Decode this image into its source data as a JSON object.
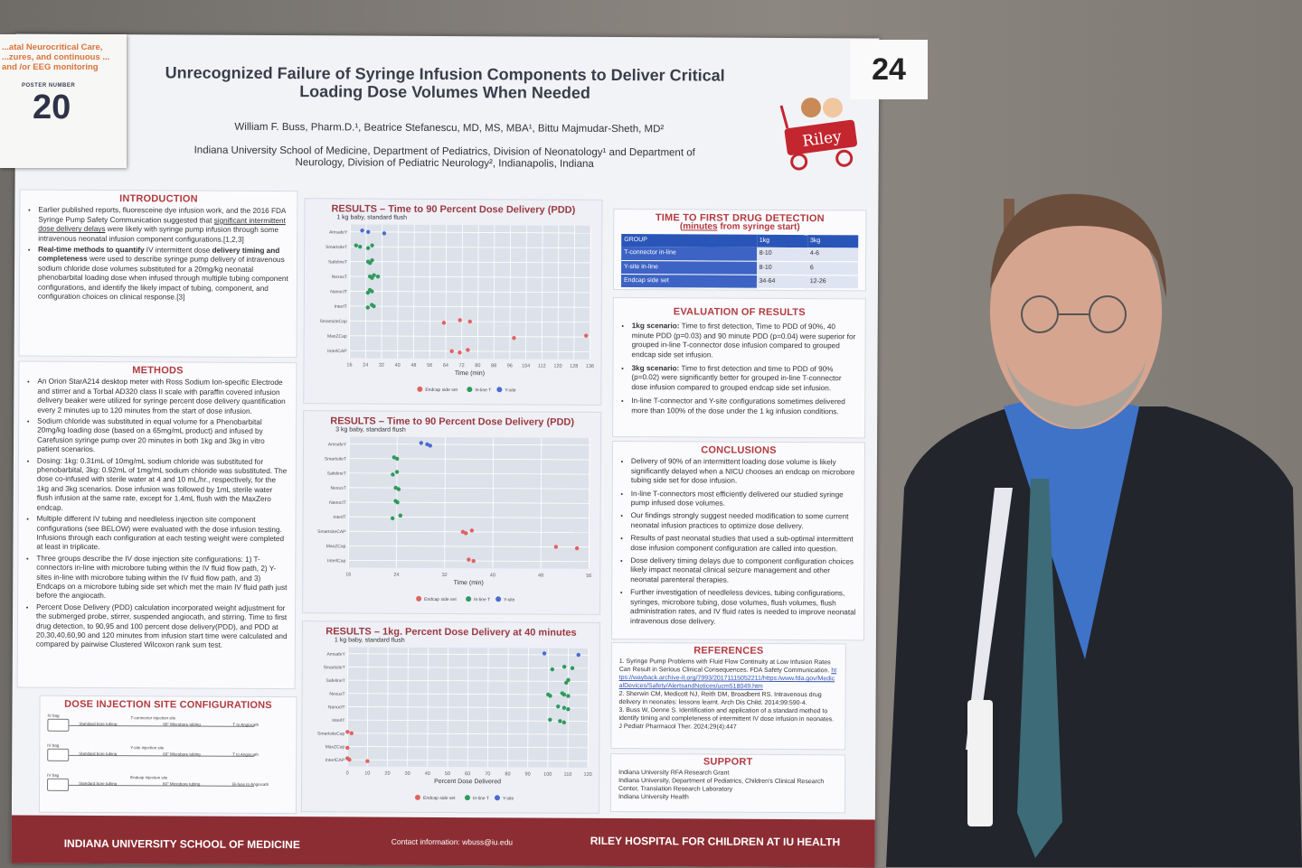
{
  "poster_card": {
    "track": "...atal Neurocritical Care, ...zures, and continuous ... and /or EEG monitoring",
    "label": "POSTER NUMBER",
    "number": "20"
  },
  "board_number": "24",
  "header": {
    "title": "Unrecognized Failure of Syringe Infusion Components to Deliver Critical Loading Dose Volumes When Needed",
    "authors": "William F. Buss, Pharm.D.¹, Beatrice Stefanescu, MD, MS, MBA¹, Bittu Majmudar-Sheth, MD²",
    "affiliation": "Indiana University School of Medicine, Department of Pediatrics, Division of Neonatology¹ and Department of Neurology, Division of Pediatric Neurology², Indianapolis, Indiana",
    "logo": "Riley"
  },
  "introduction": {
    "heading": "INTRODUCTION",
    "b1_a": "Earlier published reports, fluoresceine dye infusion work, and the 2016 FDA Syringe Pump Safety Communication suggested that ",
    "b1_u": "significant intermittent dose delivery delays",
    "b1_b": " were likely with syringe pump infusion through some intravenous neonatal infusion component configurations.[1,2,3]",
    "b2_bold": "Real-time methods to quantify",
    "b2_a": " IV intermittent dose ",
    "b2_bold2": "delivery timing and completeness",
    "b2_b": " were used to describe syringe pump delivery of intravenous sodium chloride dose volumes substituted for a 20mg/kg neonatal phenobarbital loading dose when infused through multiple tubing component configurations, and identify the likely impact of tubing, component, and configuration choices on clinical response.[3]"
  },
  "methods": {
    "heading": "METHODS",
    "items": [
      "An Orion StarA214 desktop meter with Ross Sodium Ion-specific Electrode and stirrer and a Torbal AD320 class II scale with paraffin covered infusion delivery beaker were utilized for syringe percent dose delivery quantification every 2 minutes up to 120 minutes from the start of dose infusion.",
      "Sodium chloride was substituted in equal volume for a Phenobarbital 20mg/kg loading dose (based on a 65mg/mL product) and infused by Carefusion syringe pump over 20 minutes in both 1kg and 3kg in vitro patient scenarios.",
      "Dosing: 1kg: 0.31mL of 10mg/mL sodium chloride was substituted for phenobarbital, 3kg: 0.92mL of 1mg/mL sodium chloride was substituted. The dose co-infused with sterile water at 4 and 10 mL/hr., respectively, for the 1kg and 3kg scenarios. Dose infusion was followed by 1mL sterile water flush infusion at the same rate, except for 1.4mL flush with the MaxZero endcap.",
      "Multiple different IV tubing and needleless injection site component configurations (see BELOW) were evaluated with the dose infusion testing. Infusions through each configuration at each testing weight were completed at least in triplicate.",
      "Three groups describe the IV dose injection site configurations: 1) T-connectors in-line with microbore tubing within the IV fluid flow path, 2) Y-sites in-line with microbore tubing within the IV fluid flow path, and 3) Endcaps on a microbore tubing side set which met the main IV fluid path just before the angiocath.",
      "Percent Dose Delivery (PDD) calculation incorporated weight adjustment for the submerged probe, stirrer, suspended angiocath, and stirring. Time to first drug detection, to 90,95 and 100 percent dose delivery(PDD), and PDD at 20,30,40,60,90 and 120 minutes from infusion start time were calculated and compared by pairwise Clustered Wilcoxon rank sum test."
    ]
  },
  "diagram": {
    "heading": "DOSE INJECTION SITE CONFIGURATIONS",
    "rows": [
      {
        "bag": "IV bag",
        "tube": "Standard bore tubing",
        "site": "T-connector injection site",
        "micro": "60\" Microbore tubing",
        "end": "T to Angiocath"
      },
      {
        "bag": "IV bag",
        "tube": "Standard bore tubing",
        "site": "Y-site injection site",
        "micro": "60\" Microbore tubing",
        "end": "T to Angiocath"
      },
      {
        "bag": "IV bag",
        "tube": "Standard bore tubing",
        "site": "Endcap injection site",
        "micro": "60\" Microbore tubing",
        "end": "Bi-fuse to Angiocath"
      }
    ]
  },
  "colors": {
    "endcap": "#e0625f",
    "inline_t": "#2f9a5c",
    "y_site": "#4a6cd0",
    "accent": "#b23a3f",
    "footer": "#8c2d33",
    "table": "#2a55b8"
  },
  "chart_data": [
    {
      "type": "scatter",
      "title": "RESULTS – Time to 90 Percent Dose Delivery (PDD)",
      "subtitle": "1 kg baby, standard flush",
      "xlabel": "Time (min)",
      "xlim": [
        16,
        136
      ],
      "xticks": [
        16,
        24,
        32,
        40,
        48,
        56,
        64,
        72,
        80,
        88,
        96,
        104,
        112,
        120,
        128,
        136
      ],
      "categories": [
        "AmsafeY",
        "SmartsiteT",
        "SafelineT",
        "NexusT",
        "NanoclT",
        "InterlT",
        "SmartsiteCap",
        "MaxZCap",
        "InterlCAP"
      ],
      "legend": [
        "Endcap side set",
        "In-line T",
        "Y-site"
      ],
      "legend_position": "bottom",
      "grid": true,
      "points": [
        [
          "AmsafeY",
          "Y-site",
          22
        ],
        [
          "AmsafeY",
          "Y-site",
          25
        ],
        [
          "AmsafeY",
          "Y-site",
          33
        ],
        [
          "SmartsiteT",
          "In-line T",
          19
        ],
        [
          "SmartsiteT",
          "In-line T",
          21
        ],
        [
          "SmartsiteT",
          "In-line T",
          25
        ],
        [
          "SmartsiteT",
          "In-line T",
          27
        ],
        [
          "SafelineT",
          "In-line T",
          25
        ],
        [
          "SafelineT",
          "In-line T",
          26
        ],
        [
          "SafelineT",
          "In-line T",
          27
        ],
        [
          "NexusT",
          "In-line T",
          26
        ],
        [
          "NexusT",
          "In-line T",
          27
        ],
        [
          "NexusT",
          "In-line T",
          28
        ],
        [
          "NexusT",
          "In-line T",
          30
        ],
        [
          "NanoclT",
          "In-line T",
          25
        ],
        [
          "NanoclT",
          "In-line T",
          26
        ],
        [
          "NanoclT",
          "In-line T",
          27
        ],
        [
          "InterlT",
          "In-line T",
          25
        ],
        [
          "InterlT",
          "In-line T",
          27
        ],
        [
          "InterlT",
          "In-line T",
          28
        ],
        [
          "SmartsiteCap",
          "Endcap side set",
          63
        ],
        [
          "SmartsiteCap",
          "Endcap side set",
          71
        ],
        [
          "SmartsiteCap",
          "Endcap side set",
          76
        ],
        [
          "MaxZCap",
          "Endcap side set",
          98
        ],
        [
          "MaxZCap",
          "Endcap side set",
          134
        ],
        [
          "InterlCAP",
          "Endcap side set",
          67
        ],
        [
          "InterlCAP",
          "Endcap side set",
          71
        ],
        [
          "InterlCAP",
          "Endcap side set",
          75
        ]
      ]
    },
    {
      "type": "scatter",
      "title": "RESULTS – Time to 90 Percent Dose Delivery (PDD)",
      "subtitle": "3 kg baby, standard flush",
      "xlabel": "Time (min)",
      "xlim": [
        16,
        56
      ],
      "xticks": [
        16,
        24,
        32,
        40,
        48,
        56
      ],
      "categories": [
        "AmsafeY",
        "SmartsiteT",
        "SafelineT",
        "NexusT",
        "NanoclT",
        "InterlT",
        "SmartsiteCAP",
        "MaxZCap",
        "InterlCap"
      ],
      "legend": [
        "Endcap side set",
        "In-line T",
        "Y-site"
      ],
      "legend_position": "bottom",
      "grid": true,
      "points": [
        [
          "AmsafeY",
          "Y-site",
          28
        ],
        [
          "AmsafeY",
          "Y-site",
          29
        ],
        [
          "AmsafeY",
          "Y-site",
          29.5
        ],
        [
          "SmartsiteT",
          "In-line T",
          23.5
        ],
        [
          "SmartsiteT",
          "In-line T",
          24
        ],
        [
          "SafelineT",
          "In-line T",
          23.3
        ],
        [
          "SafelineT",
          "In-line T",
          24
        ],
        [
          "NexusT",
          "In-line T",
          23.8
        ],
        [
          "NexusT",
          "In-line T",
          24.3
        ],
        [
          "NanoclT",
          "In-line T",
          23.8
        ],
        [
          "NanoclT",
          "In-line T",
          24.1
        ],
        [
          "InterlT",
          "In-line T",
          23.3
        ],
        [
          "InterlT",
          "In-line T",
          24.6
        ],
        [
          "SmartsiteCAP",
          "Endcap side set",
          35
        ],
        [
          "SmartsiteCAP",
          "Endcap side set",
          35.5
        ],
        [
          "SmartsiteCAP",
          "Endcap side set",
          36.5
        ],
        [
          "MaxZCap",
          "Endcap side set",
          50.5
        ],
        [
          "MaxZCap",
          "Endcap side set",
          54
        ],
        [
          "InterlCap",
          "Endcap side set",
          36
        ],
        [
          "InterlCap",
          "Endcap side set",
          36.8
        ]
      ]
    },
    {
      "type": "scatter",
      "title": "RESULTS – 1kg. Percent Dose Delivery at 40 minutes",
      "subtitle": "1 kg baby, standard flush",
      "xlabel": "Percent Dose Delivered",
      "xlim": [
        0,
        120
      ],
      "xticks": [
        0,
        10,
        20,
        30,
        40,
        50,
        60,
        70,
        80,
        90,
        100,
        110,
        120
      ],
      "categories": [
        "AmsafeY",
        "SmartsiteT",
        "SafelineT",
        "NexusT",
        "NanoclT",
        "InterlT",
        "SmartsiteCap",
        "MaxZCap",
        "InterlCAP"
      ],
      "legend": [
        "Endcap side set",
        "In-line T",
        "Y-site"
      ],
      "legend_position": "bottom",
      "grid": true,
      "points": [
        [
          "AmsafeY",
          "Y-site",
          98
        ],
        [
          "AmsafeY",
          "Y-site",
          115
        ],
        [
          "SmartsiteT",
          "In-line T",
          102
        ],
        [
          "SmartsiteT",
          "In-line T",
          108
        ],
        [
          "SmartsiteT",
          "In-line T",
          112
        ],
        [
          "SafelineT",
          "In-line T",
          109
        ],
        [
          "SafelineT",
          "In-line T",
          110
        ],
        [
          "NexusT",
          "In-line T",
          100
        ],
        [
          "NexusT",
          "In-line T",
          101
        ],
        [
          "NexusT",
          "In-line T",
          107
        ],
        [
          "NexusT",
          "In-line T",
          108
        ],
        [
          "NexusT",
          "In-line T",
          110
        ],
        [
          "NanoclT",
          "In-line T",
          105
        ],
        [
          "NanoclT",
          "In-line T",
          108
        ],
        [
          "NanoclT",
          "In-line T",
          110
        ],
        [
          "InterlT",
          "In-line T",
          101
        ],
        [
          "InterlT",
          "In-line T",
          106
        ],
        [
          "InterlT",
          "In-line T",
          108
        ],
        [
          "SmartsiteCap",
          "Endcap side set",
          0
        ],
        [
          "SmartsiteCap",
          "Endcap side set",
          2
        ],
        [
          "MaxZCap",
          "Endcap side set",
          0
        ],
        [
          "InterlCAP",
          "Endcap side set",
          0
        ],
        [
          "InterlCAP",
          "Endcap side set",
          1
        ],
        [
          "InterlCAP",
          "Endcap side set",
          10
        ]
      ]
    }
  ],
  "detection_table": {
    "heading": "TIME TO FIRST DRUG DETECTION",
    "sub_u": "minutes",
    "sub_rest": " from syringe start",
    "columns": [
      "GROUP",
      "1kg",
      "3kg"
    ],
    "rows": [
      [
        "T-connector in-line",
        "8-10",
        "4-6"
      ],
      [
        "Y-site in-line",
        "8-10",
        "6"
      ],
      [
        "Endcap side set",
        "34-64",
        "12-26"
      ]
    ]
  },
  "evaluation": {
    "heading": "EVALUATION OF RESULTS",
    "items": [
      {
        "bold": "1kg scenario:",
        "text": " Time to first detection, Time to PDD of 90%, 40 minute PDD (p=0.03) and 90 minute PDD (p=0.04) were superior for grouped in-line T-connector dose infusion compared to grouped endcap side set infusion."
      },
      {
        "bold": "3kg scenario:",
        "text": " Time to first detection and time to PDD of 90% (p=0.02) were significantly better for grouped in-line T-connector dose infusion compared to grouped endcap side set infusion."
      },
      {
        "bold": "",
        "text": "In-line T-connector and Y-site configurations sometimes delivered more than 100% of the dose under the 1 kg infusion conditions."
      }
    ]
  },
  "conclusions": {
    "heading": "CONCLUSIONS",
    "items": [
      "Delivery of 90% of an intermittent loading dose volume is likely significantly delayed when a NICU chooses an endcap on microbore tubing side set for dose infusion.",
      "In-line T-connectors most efficiently delivered our studied syringe pump infused dose volumes.",
      "Our findings strongly suggest needed modification to some current neonatal infusion practices to optimize dose delivery.",
      "Results of past neonatal studies that used a sub-optimal intermittent dose infusion component configuration are called into question.",
      "Dose delivery timing delays due to component configuration choices likely impact neonatal clinical seizure management and other neonatal parenteral therapies.",
      "Further investigation of needleless devices, tubing configurations, syringes, microbore tubing, dose volumes, flush volumes, flush administration rates, and IV fluid rates is needed to improve neonatal intravenous dose delivery."
    ]
  },
  "references": {
    "heading": "REFERENCES",
    "r1": "1. Syringe Pump Problems with Fluid Flow Continuity at Low Infusion Rates Can Result in Serious Clinical Consequences. FDA Safety Communication. ",
    "r1_link": "https://wayback.archive-it.org/7993/20171115052211/https:/www.fda.gov/MedicalDevices/Safety/AlertsandNotices/ucm518049.htm",
    "r2": "2. Sherwin CM, Medicott NJ, Reith DM, Broadbent RS. Intravenous drug delivery in neonates: lessons learnt. Arch Dis Child. 2014;99:590-4.",
    "r3": "3. Buss W, Denne S. Identification and application of a standard method to identify timing and completeness of intermittent IV dose infusion in neonates. J Pediatr Pharmacol Ther. 2024;29(4):447"
  },
  "support": {
    "heading": "SUPPORT",
    "lines": [
      "Indiana University RFA Research Grant",
      "Indiana University, Department of Pediatrics, Children's Clinical Research Center, Translation Research Laboratory",
      "Indiana University Health"
    ]
  },
  "footer": {
    "left": "INDIANA UNIVERSITY SCHOOL OF MEDICINE",
    "contact": "Contact information: wbuss@iu.edu",
    "right": "RILEY HOSPITAL FOR CHILDREN AT IU HEALTH"
  }
}
